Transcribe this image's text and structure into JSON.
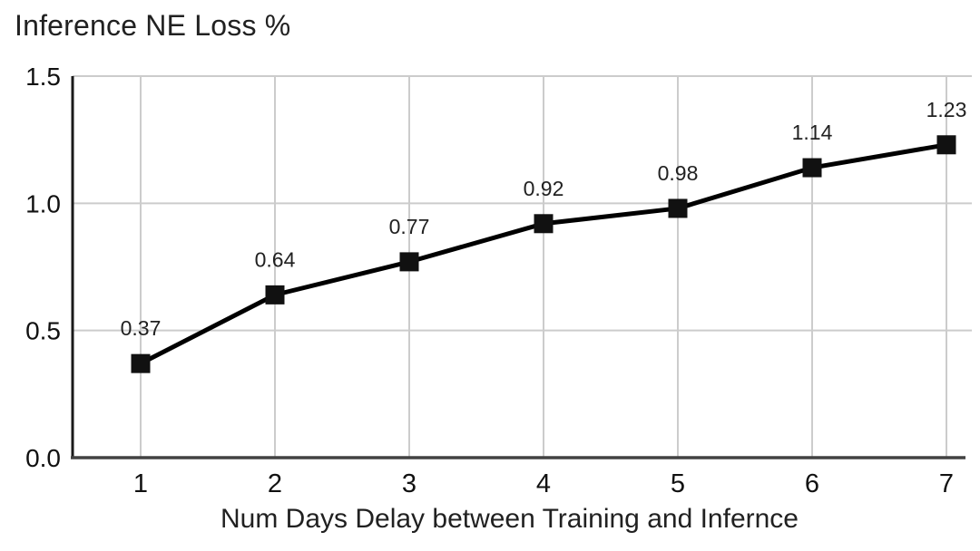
{
  "chart_data": {
    "type": "line",
    "title": "Inference NE Loss %",
    "xlabel": "Num Days Delay between Training and Infernce",
    "ylabel": "",
    "categories": [
      "1",
      "2",
      "3",
      "4",
      "5",
      "6",
      "7"
    ],
    "values": [
      0.37,
      0.64,
      0.77,
      0.92,
      0.98,
      1.14,
      1.23
    ],
    "data_labels": [
      "0.37",
      "0.64",
      "0.77",
      "0.92",
      "0.98",
      "1.14",
      "1.23"
    ],
    "ylim": [
      0,
      1.5
    ],
    "yticks": [
      0,
      0.5,
      1,
      1.5
    ],
    "ytick_labels": [
      "0.0",
      "0.5",
      "1.0",
      "1.5"
    ],
    "grid": true,
    "legend": "none",
    "series_name": "Inference NE Loss %",
    "marker": "square",
    "colors": {
      "series": "#000000",
      "marker": "#111111",
      "gridline": "#cccccc",
      "axis": "#424242",
      "text": "#212121",
      "background": "#ffffff"
    }
  }
}
